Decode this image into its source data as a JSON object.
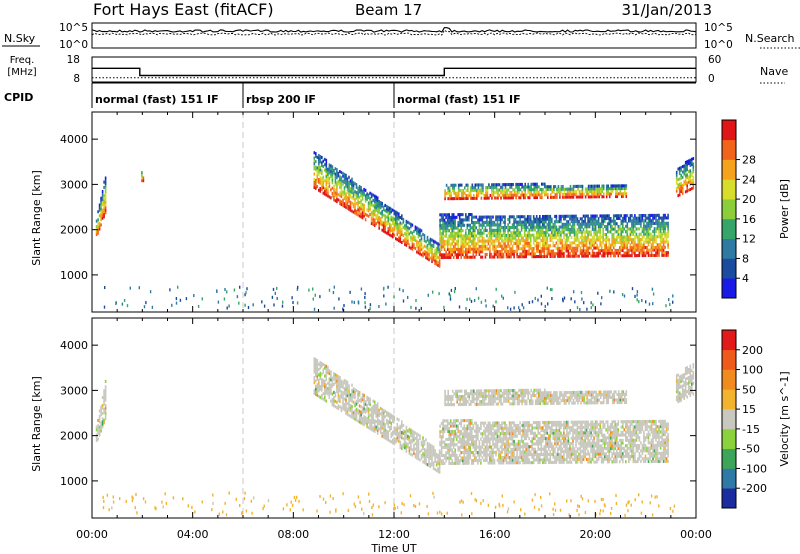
{
  "header": {
    "station": "Fort Hays East (fitACF)",
    "beam": "Beam 17",
    "date": "31/Jan/2013"
  },
  "time_axis": {
    "label": "Time UT",
    "range_hours": [
      0,
      24
    ],
    "ticks": [
      "00:00",
      "04:00",
      "08:00",
      "12:00",
      "16:00",
      "20:00",
      "00:00"
    ],
    "tick_hours": [
      0,
      4,
      8,
      12,
      16,
      20,
      24
    ]
  },
  "strip_panels": {
    "nsky": {
      "label": "N.Sky",
      "right_label": "N.Search",
      "tick_labels": [
        "10^5",
        "10^0"
      ],
      "right_tick_labels": [
        "10^5",
        "10^0"
      ]
    },
    "freq": {
      "label_line1": "Freq.",
      "label_line2": "[MHz]",
      "tick_labels": [
        "18",
        "8"
      ],
      "right_label": "Nave",
      "right_tick_labels": [
        "60",
        "0"
      ],
      "freq_steps": [
        {
          "from": 0,
          "to": 1.9,
          "value": 13.5
        },
        {
          "from": 1.9,
          "to": 14.0,
          "value": 10.6
        },
        {
          "from": 14.0,
          "to": 24,
          "value": 13.5
        }
      ],
      "nave_level": 10.3
    },
    "cpid": {
      "label": "CPID",
      "segments": [
        {
          "start": 0,
          "end": 6,
          "text": "normal (fast) 151 IF"
        },
        {
          "start": 6,
          "end": 12,
          "text": "rbsp 200 IF"
        },
        {
          "start": 12,
          "end": 24,
          "text": "normal (fast) 151 IF"
        }
      ]
    }
  },
  "chart_data": [
    {
      "type": "heatmap",
      "name": "power",
      "ylabel": "Slant Range [km]",
      "xlabel": "Time UT",
      "ylim": [
        180,
        4600
      ],
      "yticks": [
        1000,
        2000,
        3000,
        4000
      ],
      "colorbar": {
        "label": "Power [dB]",
        "range": [
          0,
          32
        ],
        "ticks": [
          "4",
          "8",
          "12",
          "16",
          "20",
          "24",
          "28"
        ],
        "tick_values": [
          4,
          8,
          12,
          16,
          20,
          24,
          28
        ],
        "colors": [
          "#1a1ae6",
          "#1b4b9e",
          "#2e7aa3",
          "#36a56a",
          "#8ccd3c",
          "#d8dc2b",
          "#f5a21d",
          "#f2641c",
          "#e01515"
        ]
      },
      "echo_bands": [
        {
          "t0": 0.15,
          "t1": 0.55,
          "lo0": 1800,
          "lo1": 2400,
          "hi0": 2200,
          "hi1": 3300
        },
        {
          "t0": 1.95,
          "t1": 2.05,
          "lo0": 3050,
          "lo1": 3050,
          "hi0": 3300,
          "hi1": 3300
        },
        {
          "t0": 8.8,
          "t1": 13.8,
          "lo0": 2900,
          "lo1": 1150,
          "hi0": 3700,
          "hi1": 1650
        },
        {
          "t0": 13.8,
          "t1": 22.9,
          "lo0": 1350,
          "lo1": 1400,
          "hi0": 2300,
          "hi1": 2300
        },
        {
          "t0": 14.0,
          "t1": 21.2,
          "lo0": 2650,
          "lo1": 2700,
          "hi0": 3000,
          "hi1": 2950
        },
        {
          "t0": 23.2,
          "t1": 23.9,
          "lo0": 2700,
          "lo1": 2900,
          "hi0": 3300,
          "hi1": 3600
        }
      ]
    },
    {
      "type": "heatmap",
      "name": "velocity",
      "ylabel": "Slant Range [km]",
      "xlabel": "Time UT",
      "ylim": [
        180,
        4600
      ],
      "yticks": [
        1000,
        2000,
        3000,
        4000
      ],
      "colorbar": {
        "label": "Velocity [m s^-1]",
        "range": [
          -250,
          250
        ],
        "ticks": [
          "200",
          "100",
          "50",
          "15",
          "-15",
          "-50",
          "-100",
          "-200"
        ],
        "tick_values": [
          200,
          100,
          50,
          15,
          -15,
          -50,
          -100,
          -200
        ],
        "colors": [
          "#e31a1c",
          "#ef5a1a",
          "#f18a1f",
          "#f2b42e",
          "#c8c8be",
          "#8cd23c",
          "#3ca55a",
          "#2e79a6",
          "#1b2d9e"
        ]
      },
      "dominant_velocity": 0,
      "echo_bands": [
        {
          "t0": 0.15,
          "t1": 0.55,
          "lo0": 1800,
          "lo1": 2400,
          "hi0": 2200,
          "hi1": 3300
        },
        {
          "t0": 8.8,
          "t1": 13.8,
          "lo0": 2900,
          "lo1": 1150,
          "hi0": 3700,
          "hi1": 1650
        },
        {
          "t0": 13.8,
          "t1": 22.9,
          "lo0": 1350,
          "lo1": 1400,
          "hi0": 2300,
          "hi1": 2300
        },
        {
          "t0": 14.0,
          "t1": 21.2,
          "lo0": 2650,
          "lo1": 2700,
          "hi0": 3000,
          "hi1": 2950
        },
        {
          "t0": 23.2,
          "t1": 23.9,
          "lo0": 2700,
          "lo1": 2900,
          "hi0": 3300,
          "hi1": 3600
        }
      ]
    }
  ]
}
